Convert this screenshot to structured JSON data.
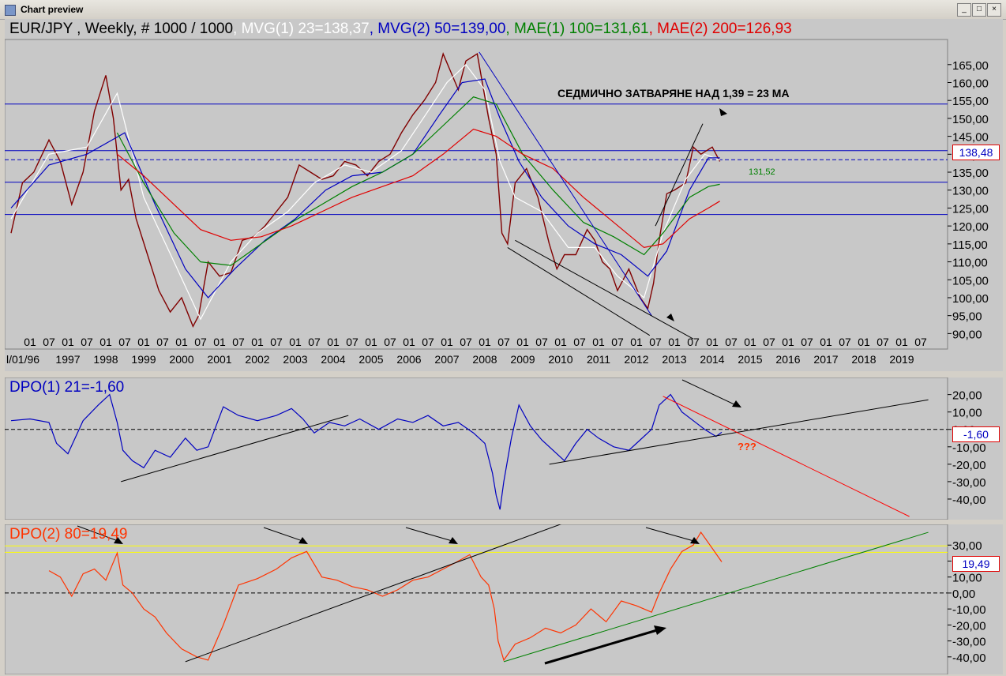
{
  "window": {
    "title": "Chart preview",
    "buttons": [
      "_",
      "□",
      "×"
    ]
  },
  "main": {
    "header": [
      {
        "text": "EUR/JPY , Weekly, # 1000 / 1000",
        "color": "#000000"
      },
      {
        "text": ", MVG(1) 23=138,37",
        "color": "#ffffff"
      },
      {
        "text": ", MVG(2) 50=139,00",
        "color": "#0000c0"
      },
      {
        "text": ", MAE(1) 100=131,61",
        "color": "#008000"
      },
      {
        "text": ", MAE(2) 200=126,93",
        "color": "#e00000"
      }
    ],
    "annotation": "СЕДМИЧНО ЗАТВАРЯНЕ НАД 1,39 = 23 МА",
    "price_label": "138,48",
    "mae_label": "131,52"
  },
  "dpo1": {
    "header": "DPO(1) 21=-1,60",
    "color": "#0000c0",
    "value_label": "-1,60",
    "question": "???"
  },
  "dpo2": {
    "header": "DPO(2) 80=19,49",
    "color": "#ff3300",
    "value_label": "19,49"
  },
  "x_axis": {
    "month_ticks": [
      "01",
      "07",
      "01",
      "07",
      "01",
      "07",
      "01",
      "07",
      "01",
      "07",
      "01",
      "07",
      "01",
      "07",
      "01",
      "07",
      "01",
      "07",
      "01",
      "07",
      "01",
      "07",
      "01",
      "07",
      "01",
      "07",
      "01",
      "07",
      "01",
      "07",
      "01",
      "07",
      "01",
      "07",
      "01",
      "07",
      "01",
      "07",
      "01",
      "07",
      "01",
      "07",
      "01",
      "07",
      "01",
      "07",
      "01",
      "07"
    ],
    "first_label": "l/01/96",
    "years": [
      "1997",
      "1998",
      "1999",
      "2000",
      "2001",
      "2002",
      "2003",
      "2004",
      "2005",
      "2006",
      "2007",
      "2008",
      "2009",
      "2010",
      "2011",
      "2012",
      "2013",
      "2014",
      "2015",
      "2016",
      "2017",
      "2018",
      "2019"
    ]
  },
  "chart_data": [
    {
      "type": "line",
      "title": "EUR/JPY , Weekly, # 1000 / 1000",
      "ylim": [
        87,
        172
      ],
      "y_ticks": [
        "90,00",
        "95,00",
        "100,00",
        "105,00",
        "110,00",
        "115,00",
        "120,00",
        "125,00",
        "130,00",
        "135,00",
        "140,00",
        "145,00",
        "150,00",
        "155,00",
        "160,00",
        "165,00"
      ],
      "x_range": [
        1996.0,
        2020.0
      ],
      "horizontal_lines": [
        154,
        141,
        138.48,
        132.2,
        123.2
      ],
      "series": [
        {
          "name": "EUR/JPY",
          "color": "#800000",
          "x": [
            1996.0,
            1996.3,
            1996.6,
            1997.0,
            1997.3,
            1997.6,
            1997.9,
            1998.2,
            1998.5,
            1998.7,
            1998.9,
            1999.1,
            1999.3,
            1999.6,
            1999.9,
            2000.2,
            2000.5,
            2000.8,
            2000.95,
            2001.2,
            2001.5,
            2001.8,
            2002.1,
            2002.4,
            2002.7,
            2003.0,
            2003.3,
            2003.6,
            2003.9,
            2004.2,
            2004.5,
            2004.8,
            2005.1,
            2005.4,
            2005.7,
            2006.0,
            2006.3,
            2006.6,
            2006.9,
            2007.2,
            2007.4,
            2007.6,
            2007.8,
            2008.0,
            2008.3,
            2008.6,
            2008.8,
            2008.95,
            2009.1,
            2009.3,
            2009.6,
            2009.9,
            2010.2,
            2010.4,
            2010.6,
            2010.9,
            2011.2,
            2011.4,
            2011.6,
            2011.8,
            2012.0,
            2012.3,
            2012.6,
            2012.8,
            2012.95,
            2013.1,
            2013.3,
            2013.5,
            2013.8,
            2014.0,
            2014.2,
            2014.5,
            2014.7
          ],
          "y": [
            118,
            132,
            135,
            144,
            138,
            126,
            135,
            152,
            162,
            150,
            130,
            133,
            122,
            112,
            102,
            96,
            100,
            92,
            95,
            110,
            106,
            107,
            116,
            117,
            120,
            124,
            128,
            137,
            135,
            133,
            134,
            138,
            137,
            134,
            138,
            140,
            146,
            151,
            155,
            160,
            168,
            163,
            158,
            166,
            168,
            150,
            140,
            118,
            115,
            132,
            136,
            128,
            115,
            108,
            112,
            112,
            119,
            116,
            110,
            108,
            102,
            108,
            100,
            97,
            104,
            116,
            129,
            130,
            132,
            142,
            140,
            142,
            138
          ]
        },
        {
          "name": "MVG(1) 23",
          "color": "#ffffff",
          "x": [
            1996.0,
            1997.0,
            1998.0,
            1998.8,
            1999.5,
            2000.3,
            2001.0,
            2001.8,
            2002.5,
            2003.3,
            2004.0,
            2004.8,
            2005.5,
            2006.3,
            2007.0,
            2007.5,
            2008.0,
            2008.5,
            2008.9,
            2009.3,
            2010.0,
            2010.7,
            2011.4,
            2012.0,
            2012.7,
            2013.2,
            2013.8,
            2014.3,
            2014.7
          ],
          "y": [
            122,
            140,
            142,
            157,
            128,
            110,
            94,
            110,
            118,
            124,
            132,
            137,
            135,
            141,
            152,
            160,
            165,
            158,
            138,
            128,
            124,
            114,
            114,
            106,
            100,
            118,
            133,
            140,
            138.37
          ]
        },
        {
          "name": "MVG(2) 50",
          "color": "#0000c0",
          "x": [
            1996.0,
            1997.0,
            1998.0,
            1999.0,
            1999.8,
            2000.6,
            2001.2,
            2001.9,
            2002.7,
            2003.5,
            2004.3,
            2005.0,
            2005.8,
            2006.6,
            2007.3,
            2007.9,
            2008.5,
            2008.9,
            2009.4,
            2010.0,
            2010.7,
            2011.4,
            2012.1,
            2012.8,
            2013.3,
            2013.9,
            2014.4,
            2014.7
          ],
          "y": [
            125,
            137,
            140,
            146,
            126,
            108,
            100,
            108,
            116,
            122,
            130,
            134,
            135,
            140,
            151,
            160,
            161,
            150,
            138,
            128,
            120,
            115,
            112,
            106,
            113,
            130,
            139,
            139.0
          ]
        },
        {
          "name": "MAE(1) 100",
          "color": "#008000",
          "x": [
            1998.8,
            1999.5,
            2000.3,
            2001.0,
            2001.8,
            2002.6,
            2003.4,
            2004.2,
            2005.0,
            2005.8,
            2006.6,
            2007.4,
            2008.2,
            2008.8,
            2009.5,
            2010.3,
            2011.1,
            2011.9,
            2012.7,
            2013.2,
            2013.9,
            2014.4,
            2014.7
          ],
          "y": [
            146,
            132,
            118,
            110,
            109,
            115,
            121,
            126,
            131,
            135,
            140,
            148,
            156,
            154,
            140,
            130,
            121,
            117,
            112,
            118,
            128,
            131,
            131.61
          ]
        },
        {
          "name": "MAE(2) 200",
          "color": "#e00000",
          "x": [
            1998.8,
            1999.5,
            2000.3,
            2001.0,
            2001.8,
            2002.6,
            2003.4,
            2004.2,
            2005.0,
            2005.8,
            2006.6,
            2007.4,
            2008.2,
            2008.8,
            2009.5,
            2010.3,
            2011.1,
            2011.9,
            2012.7,
            2013.2,
            2013.9,
            2014.4,
            2014.7
          ],
          "y": [
            140,
            134,
            126,
            119,
            116,
            117,
            120,
            124,
            128,
            131,
            134,
            140,
            147,
            145,
            140,
            136,
            128,
            121,
            114,
            115,
            122,
            125,
            126.93
          ]
        }
      ],
      "trendlines": [
        {
          "color": "#0000c0",
          "points": [
            [
              2008.35,
              168.5
            ],
            [
              2012.9,
              95
            ]
          ]
        },
        {
          "color": "#000000",
          "points": [
            [
              2009.1,
              114
            ],
            [
              2012.85,
              89.5
            ]
          ]
        },
        {
          "color": "#000000",
          "points": [
            [
              2009.3,
              116
            ],
            [
              2014.0,
              88.5
            ]
          ]
        },
        {
          "color": "#000000",
          "points": [
            [
              2013.0,
              120
            ],
            [
              2014.25,
              148.5
            ]
          ]
        }
      ]
    },
    {
      "type": "line",
      "title": "DPO(1) 21=-1,60",
      "ylim": [
        -50,
        28
      ],
      "y_ticks": [
        "-40,00",
        "-30,00",
        "-20,00",
        "-10,00",
        "0,00",
        "10,00",
        "20,00"
      ],
      "series": [
        {
          "name": "DPO(1) 21",
          "color": "#0000c0",
          "x": [
            1996.0,
            1996.5,
            1997.0,
            1997.2,
            1997.5,
            1997.9,
            1998.3,
            1998.6,
            1998.8,
            1998.95,
            1999.2,
            1999.5,
            1999.8,
            2000.2,
            2000.6,
            2000.9,
            2001.2,
            2001.6,
            2002.0,
            2002.5,
            2003.0,
            2003.4,
            2003.7,
            2004.0,
            2004.4,
            2004.8,
            2005.2,
            2005.7,
            2006.2,
            2006.6,
            2007.0,
            2007.4,
            2007.8,
            2008.2,
            2008.5,
            2008.7,
            2008.8,
            2008.9,
            2009.0,
            2009.2,
            2009.4,
            2009.7,
            2010.0,
            2010.3,
            2010.6,
            2010.9,
            2011.2,
            2011.5,
            2011.9,
            2012.3,
            2012.6,
            2012.9,
            2013.1,
            2013.4,
            2013.7,
            2014.0,
            2014.3,
            2014.6,
            2014.75
          ],
          "y": [
            5,
            6,
            4,
            -8,
            -14,
            5,
            14,
            20,
            4,
            -12,
            -18,
            -22,
            -12,
            -16,
            -5,
            -12,
            -10,
            13,
            8,
            5,
            8,
            12,
            6,
            -2,
            4,
            2,
            6,
            0,
            6,
            4,
            8,
            2,
            4,
            -2,
            -8,
            -25,
            -38,
            -46,
            -30,
            -5,
            14,
            2,
            -6,
            -12,
            -18,
            -8,
            0,
            -5,
            -10,
            -12,
            -6,
            0,
            14,
            20,
            10,
            5,
            0,
            -4,
            -1.6
          ]
        }
      ],
      "trendlines": [
        {
          "color": "#000000",
          "points": [
            [
              1998.9,
              -30
            ],
            [
              2004.9,
              8
            ]
          ]
        },
        {
          "color": "#000000",
          "points": [
            [
              2010.2,
              -20
            ],
            [
              2020.2,
              17
            ]
          ]
        },
        {
          "color": "#ff0000",
          "points": [
            [
              2013.2,
              19
            ],
            [
              2019.7,
              -50
            ]
          ]
        }
      ]
    },
    {
      "type": "line",
      "title": "DPO(2) 80=19,49",
      "ylim": [
        -48,
        40
      ],
      "y_ticks": [
        "-40,00",
        "-30,00",
        "-20,00",
        "-10,00",
        "0,00",
        "10,00",
        "20,00",
        "30,00"
      ],
      "horizontal_lines": [
        29.5,
        25.5
      ],
      "series": [
        {
          "name": "DPO(2) 80",
          "color": "#ff3300",
          "x": [
            1997.0,
            1997.3,
            1997.6,
            1997.9,
            1998.2,
            1998.5,
            1998.8,
            1998.95,
            1999.2,
            1999.5,
            1999.8,
            2000.1,
            2000.5,
            2000.9,
            2001.2,
            2001.6,
            2002.0,
            2002.5,
            2003.0,
            2003.4,
            2003.8,
            2004.2,
            2004.6,
            2005.0,
            2005.4,
            2005.8,
            2006.2,
            2006.6,
            2007.0,
            2007.4,
            2007.8,
            2008.1,
            2008.4,
            2008.6,
            2008.75,
            2008.85,
            2009.0,
            2009.3,
            2009.7,
            2010.1,
            2010.5,
            2010.9,
            2011.3,
            2011.7,
            2012.1,
            2012.5,
            2012.9,
            2013.1,
            2013.4,
            2013.7,
            2014.0,
            2014.2,
            2014.5,
            2014.75
          ],
          "y": [
            14,
            10,
            -2,
            12,
            15,
            8,
            25,
            5,
            0,
            -10,
            -15,
            -25,
            -35,
            -40,
            -42,
            -20,
            5,
            9,
            15,
            22,
            26,
            10,
            8,
            4,
            2,
            -2,
            2,
            8,
            10,
            15,
            20,
            24,
            10,
            5,
            -10,
            -30,
            -42,
            -32,
            -28,
            -22,
            -25,
            -20,
            -10,
            -18,
            -5,
            -8,
            -12,
            0,
            15,
            26,
            30,
            38,
            28,
            19.49
          ]
        }
      ],
      "trendlines": [
        {
          "color": "#000000",
          "points": [
            [
              2000.6,
              -43
            ],
            [
              2011.3,
              50
            ]
          ]
        },
        {
          "color": "#008000",
          "points": [
            [
              2009.0,
              -43
            ],
            [
              2020.2,
              38
            ]
          ]
        }
      ]
    }
  ]
}
